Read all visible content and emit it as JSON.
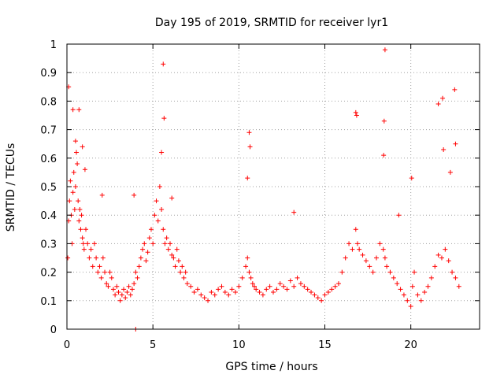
{
  "chart_data": {
    "type": "scatter",
    "title": "Day 195 of 2019, SRMTID for receiver lyr1",
    "xlabel": "GPS time / hours",
    "ylabel": "SRMTID / TECUs",
    "xlim": [
      0,
      24
    ],
    "ylim": [
      0,
      1
    ],
    "xticks": [
      0,
      5,
      10,
      15,
      20
    ],
    "xtick_labels": [
      "0",
      "5",
      "10",
      "15",
      "20"
    ],
    "yticks": [
      0,
      0.1,
      0.2,
      0.3,
      0.4,
      0.5,
      0.6,
      0.7,
      0.8,
      0.9,
      1
    ],
    "ytick_labels": [
      "0",
      "0.1",
      "0.2",
      "0.3",
      "0.4",
      "0.5",
      "0.6",
      "0.7",
      "0.8",
      "0.9",
      "1"
    ],
    "grid": true,
    "marker": "+",
    "color": "#ff0000",
    "series": [
      {
        "name": "SRMTID",
        "x": [
          0.05,
          0.1,
          0.15,
          0.2,
          0.25,
          0.3,
          0.35,
          0.4,
          0.45,
          0.5,
          0.55,
          0.6,
          0.65,
          0.7,
          0.75,
          0.8,
          0.85,
          0.9,
          0.95,
          1.0,
          1.1,
          1.2,
          1.3,
          1.4,
          1.5,
          1.6,
          1.7,
          1.8,
          1.9,
          2.0,
          2.1,
          2.2,
          2.3,
          2.4,
          2.5,
          2.6,
          2.7,
          2.8,
          2.9,
          3.0,
          3.1,
          3.2,
          3.3,
          3.4,
          3.5,
          3.6,
          3.7,
          3.8,
          3.9,
          4.0,
          4.1,
          4.2,
          4.3,
          4.4,
          4.5,
          4.6,
          4.7,
          4.8,
          4.9,
          5.0,
          5.1,
          5.2,
          5.3,
          5.4,
          5.5,
          5.6,
          5.7,
          5.8,
          5.9,
          6.0,
          6.1,
          6.2,
          6.3,
          6.4,
          6.5,
          6.6,
          6.7,
          6.8,
          6.9,
          7.0,
          7.2,
          7.4,
          7.6,
          7.8,
          8.0,
          8.2,
          8.4,
          8.6,
          8.8,
          9.0,
          9.2,
          9.4,
          9.6,
          9.8,
          10.0,
          10.2,
          10.4,
          10.5,
          10.6,
          10.7,
          10.8,
          10.9,
          11.0,
          11.2,
          11.4,
          11.6,
          11.8,
          12.0,
          12.2,
          12.4,
          12.6,
          12.8,
          13.0,
          13.2,
          13.4,
          13.6,
          13.8,
          14.0,
          14.2,
          14.4,
          14.6,
          14.8,
          15.0,
          15.2,
          15.4,
          15.6,
          15.8,
          16.0,
          16.2,
          16.4,
          16.6,
          16.8,
          16.9,
          17.0,
          17.2,
          17.4,
          17.6,
          17.8,
          18.0,
          18.2,
          18.4,
          18.5,
          18.6,
          18.8,
          19.0,
          19.2,
          19.4,
          19.6,
          19.8,
          20.0,
          20.1,
          20.2,
          20.4,
          20.6,
          20.8,
          21.0,
          21.2,
          21.4,
          21.6,
          21.8,
          22.0,
          22.2,
          22.4,
          22.6,
          22.8,
          0.1,
          0.35,
          0.5,
          0.7,
          0.9,
          1.05,
          2.05,
          3.9,
          4.0,
          5.6,
          5.65,
          5.5,
          10.6,
          10.65,
          10.5,
          16.8,
          16.85,
          18.5,
          18.45,
          18.42,
          20.05,
          21.6,
          21.85,
          22.55,
          22.6,
          13.2,
          19.3,
          21.9,
          6.1,
          22.3
        ],
        "y": [
          0.25,
          0.38,
          0.45,
          0.52,
          0.4,
          0.3,
          0.48,
          0.55,
          0.42,
          0.5,
          0.62,
          0.58,
          0.45,
          0.38,
          0.42,
          0.35,
          0.4,
          0.32,
          0.3,
          0.28,
          0.35,
          0.3,
          0.25,
          0.28,
          0.22,
          0.3,
          0.25,
          0.2,
          0.22,
          0.18,
          0.25,
          0.2,
          0.16,
          0.15,
          0.2,
          0.18,
          0.14,
          0.12,
          0.15,
          0.13,
          0.1,
          0.12,
          0.14,
          0.11,
          0.13,
          0.15,
          0.12,
          0.14,
          0.16,
          0.2,
          0.18,
          0.22,
          0.25,
          0.28,
          0.3,
          0.24,
          0.27,
          0.32,
          0.35,
          0.3,
          0.4,
          0.45,
          0.38,
          0.5,
          0.42,
          0.35,
          0.3,
          0.32,
          0.28,
          0.3,
          0.26,
          0.25,
          0.22,
          0.28,
          0.24,
          0.2,
          0.22,
          0.18,
          0.2,
          0.16,
          0.15,
          0.13,
          0.14,
          0.12,
          0.11,
          0.1,
          0.13,
          0.12,
          0.14,
          0.15,
          0.13,
          0.12,
          0.14,
          0.13,
          0.15,
          0.18,
          0.22,
          0.25,
          0.2,
          0.18,
          0.16,
          0.15,
          0.14,
          0.13,
          0.12,
          0.14,
          0.15,
          0.13,
          0.14,
          0.16,
          0.15,
          0.14,
          0.17,
          0.15,
          0.18,
          0.16,
          0.15,
          0.14,
          0.13,
          0.12,
          0.11,
          0.1,
          0.12,
          0.13,
          0.14,
          0.15,
          0.16,
          0.2,
          0.25,
          0.3,
          0.28,
          0.35,
          0.3,
          0.28,
          0.26,
          0.24,
          0.22,
          0.2,
          0.25,
          0.3,
          0.28,
          0.25,
          0.22,
          0.2,
          0.18,
          0.16,
          0.14,
          0.12,
          0.1,
          0.08,
          0.15,
          0.2,
          0.12,
          0.1,
          0.13,
          0.15,
          0.18,
          0.22,
          0.26,
          0.25,
          0.28,
          0.24,
          0.2,
          0.18,
          0.15,
          0.85,
          0.77,
          0.66,
          0.77,
          0.64,
          0.56,
          0.47,
          0.47,
          0.0,
          0.93,
          0.74,
          0.62,
          0.69,
          0.64,
          0.53,
          0.76,
          0.75,
          0.98,
          0.73,
          0.61,
          0.53,
          0.79,
          0.81,
          0.84,
          0.65,
          0.41,
          0.4,
          0.63,
          0.46,
          0.55
        ]
      }
    ]
  }
}
